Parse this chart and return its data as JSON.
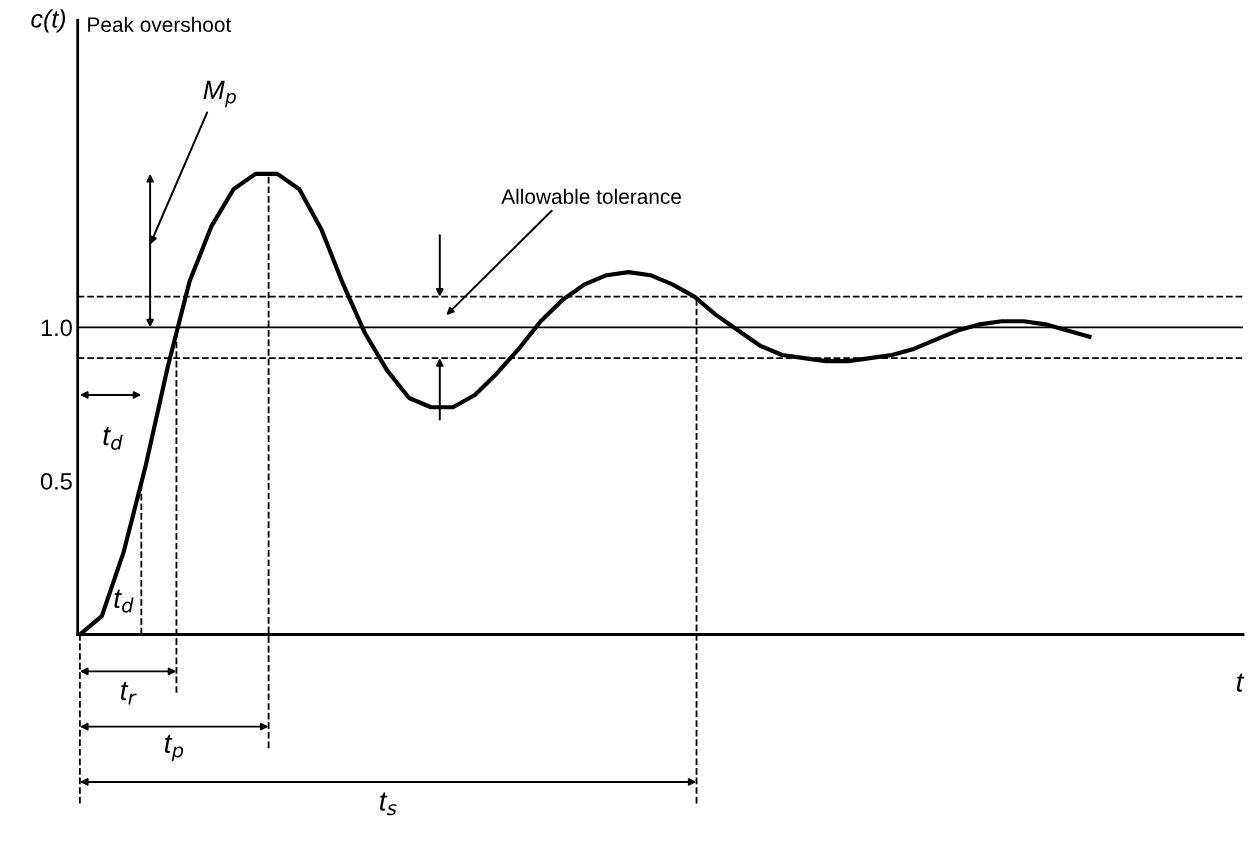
{
  "chart_data": {
    "type": "line",
    "xlabel": "t",
    "ylabel": "c(t)",
    "categories": [
      null,
      null,
      null,
      null,
      null,
      null,
      null,
      null,
      null,
      null,
      null,
      null,
      null,
      null,
      null,
      null,
      null,
      null,
      null,
      null,
      null,
      null,
      null,
      null,
      null,
      null,
      null,
      null,
      null,
      null,
      null,
      null,
      null,
      null,
      null,
      null,
      null,
      null,
      null,
      null,
      null,
      null,
      null,
      null,
      null,
      null,
      null,
      null,
      null,
      null
    ],
    "series": [
      {
        "color": "#000000",
        "values": [
          0,
          0.06,
          0.27,
          0.55,
          0.87,
          1.15,
          1.33,
          1.45,
          1.5,
          1.5,
          1.45,
          1.32,
          1.14,
          0.98,
          0.86,
          0.77,
          0.74,
          0.74,
          0.78,
          0.85,
          0.93,
          1.02,
          1.09,
          1.14,
          1.17,
          1.18,
          1.17,
          1.14,
          1.1,
          1.04,
          0.99,
          0.94,
          0.91,
          0.9,
          0.89,
          0.89,
          0.9,
          0.91,
          0.93,
          0.96,
          0.99,
          1.01,
          1.02,
          1.02,
          1.01,
          0.99,
          0.97,
          null,
          null,
          null
        ]
      }
    ],
    "ylim": [
      0,
      2.0
    ],
    "yticks": [
      0.5,
      {
        "value": 1.0,
        "label": "1.0"
      }
    ],
    "tick_labels": "y",
    "grid": false,
    "legend": false,
    "marker": "none",
    "line_style": "solid",
    "ref_lines": [
      {
        "axis": "y",
        "value": 1.0,
        "line_style": "solid"
      },
      {
        "axis": "y",
        "value": 1.1,
        "line_style": "dashed"
      },
      {
        "axis": "y",
        "value": 0.9,
        "line_style": "dashed"
      }
    ],
    "annotations": [
      "Peak overshoot",
      "M$_{p}$",
      "Allowable tolerance",
      "t$_{d}$",
      "t$_{d}$",
      "t$_{r}$",
      "t$_{p}$",
      "t$_{s}$"
    ]
  }
}
